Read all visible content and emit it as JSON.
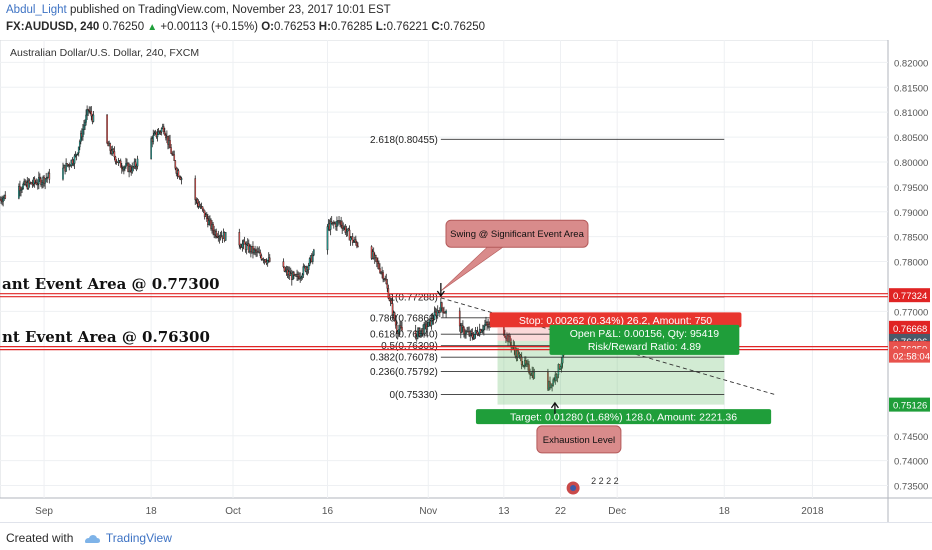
{
  "header": {
    "author": "Abdul_Light",
    "published": " published on TradingView.com, November 23, 2017 10:01 EST",
    "symbol": "FX:AUDUSD, 240",
    "last": "0.76250",
    "change": "+0.00113 (+0.15%)",
    "o_label": "O:",
    "o": "0.76253",
    "h_label": "H:",
    "h": "0.76285",
    "l_label": "L:",
    "l": "0.76221",
    "c_label": "C:",
    "c": "0.76250"
  },
  "footer": {
    "created_with": "Created with",
    "brand": "TradingView"
  },
  "colors": {
    "up": "#26a69a",
    "down": "#ef5350",
    "wick": "#222222",
    "red_line": "#e02424",
    "stop_zone": "rgba(239,83,80,0.22)",
    "target_zone": "rgba(76,175,80,0.25)"
  },
  "chart_data": {
    "type": "candlestick",
    "title": "Australian Dollar/U.S. Dollar, 240, FXCM",
    "y_range": [
      0.7325,
      0.8245
    ],
    "x_range": [
      "2017-08-25",
      "2018-01-13"
    ],
    "x_ticks": [
      {
        "label": "Sep",
        "date": "2017-09-01"
      },
      {
        "label": "18",
        "date": "2017-09-18"
      },
      {
        "label": "Oct",
        "date": "2017-10-01"
      },
      {
        "label": "16",
        "date": "2017-10-16"
      },
      {
        "label": "Nov",
        "date": "2017-11-01"
      },
      {
        "label": "13",
        "date": "2017-11-13"
      },
      {
        "label": "22",
        "date": "2017-11-22"
      },
      {
        "label": "Dec",
        "date": "2017-12-01"
      },
      {
        "label": "18",
        "date": "2017-12-18"
      },
      {
        "label": "2018",
        "date": "2018-01-01"
      }
    ],
    "y_ticks": [
      "0.82000",
      "0.81500",
      "0.81000",
      "0.80500",
      "0.80000",
      "0.79500",
      "0.79000",
      "0.78500",
      "0.78000",
      "0.77000",
      "0.74500",
      "0.74000",
      "0.73500"
    ],
    "price_anchors": [
      [
        "2017-08-25",
        0.7925
      ],
      [
        "2017-08-28",
        0.795
      ],
      [
        "2017-08-31",
        0.796
      ],
      [
        "2017-09-04",
        0.7985
      ],
      [
        "2017-09-06",
        0.801
      ],
      [
        "2017-09-08",
        0.8105
      ],
      [
        "2017-09-11",
        0.8035
      ],
      [
        "2017-09-13",
        0.7995
      ],
      [
        "2017-09-15",
        0.7985
      ],
      [
        "2017-09-18",
        0.8045
      ],
      [
        "2017-09-20",
        0.807
      ],
      [
        "2017-09-22",
        0.7985
      ],
      [
        "2017-09-26",
        0.7905
      ],
      [
        "2017-09-28",
        0.786
      ],
      [
        "2017-10-02",
        0.7838
      ],
      [
        "2017-10-05",
        0.7815
      ],
      [
        "2017-10-09",
        0.7782
      ],
      [
        "2017-10-11",
        0.7765
      ],
      [
        "2017-10-13",
        0.7795
      ],
      [
        "2017-10-16",
        0.787
      ],
      [
        "2017-10-18",
        0.788
      ],
      [
        "2017-10-20",
        0.7842
      ],
      [
        "2017-10-23",
        0.7815
      ],
      [
        "2017-10-25",
        0.777
      ],
      [
        "2017-10-27",
        0.7665
      ],
      [
        "2017-10-30",
        0.7652
      ],
      [
        "2017-11-01",
        0.7672
      ],
      [
        "2017-11-03",
        0.771
      ],
      [
        "2017-11-06",
        0.7665
      ],
      [
        "2017-11-08",
        0.765
      ],
      [
        "2017-11-10",
        0.7672
      ],
      [
        "2017-11-13",
        0.766
      ],
      [
        "2017-11-15",
        0.7615
      ],
      [
        "2017-11-17",
        0.7582
      ],
      [
        "2017-11-20",
        0.7548
      ],
      [
        "2017-11-21",
        0.7565
      ],
      [
        "2017-11-22",
        0.7595
      ],
      [
        "2017-11-23",
        0.7625
      ]
    ],
    "fibonacci": [
      {
        "label": "2.618(0.80455)",
        "price": 0.80455
      },
      {
        "label": "1(0.77288)",
        "price": 0.77288
      },
      {
        "label": "0.786(0.76869)",
        "price": 0.76869
      },
      {
        "label": "0.618(0.76540)",
        "price": 0.7654
      },
      {
        "label": "0.5(0.76309)",
        "price": 0.76309
      },
      {
        "label": "0.382(0.76078)",
        "price": 0.76078
      },
      {
        "label": "0.236(0.75792)",
        "price": 0.75792
      },
      {
        "label": "0(0.75330)",
        "price": 0.7533
      }
    ],
    "fib_start": "2017-11-03",
    "fib_end": "2017-12-18",
    "horizontal_lines": [
      {
        "label": "ant Event Area @ 0.77300",
        "price": 0.77324
      },
      {
        "label": "nt Event Area @ 0.76300",
        "price": 0.7626
      }
    ],
    "trendline": {
      "from": [
        "2017-11-03",
        0.7727
      ],
      "to": [
        "2017-12-26",
        0.7533
      ]
    },
    "position": {
      "stop_label": "Stop: 0.00262 (0.34%) 26.2, Amount: 750",
      "pnl_label": "Open P&L: 0.00156, Qty: 95419",
      "rr_label": "Risk/Reward Ratio: 4.89",
      "target_label": "Target: 0.01280 (1.68%) 128.0, Amount: 2221.36",
      "entry": 0.76406,
      "stop": 0.76668,
      "target": 0.75126,
      "start": "2017-11-12",
      "end": "2017-12-18"
    },
    "callouts": [
      {
        "text": "Swing @ Significant Event Area"
      },
      {
        "text": "Exhaustion Level"
      }
    ],
    "price_tags": [
      {
        "text": "0.77324",
        "price": 0.77324,
        "color": "#e02424"
      },
      {
        "text": "0.76668",
        "price": 0.76668,
        "color": "#e02424"
      },
      {
        "text": "0.76406",
        "price": 0.76406,
        "color": "#4a5a6a"
      },
      {
        "text": "0.76260",
        "price": 0.7626,
        "color": "#e02424"
      },
      {
        "text": "0.76250",
        "price": 0.7625,
        "color": "#e8524d"
      },
      {
        "text": "02:58:04",
        "price": 0.7611,
        "color": "#e8524d"
      },
      {
        "text": "0.75126",
        "price": 0.75126,
        "color": "#1f9e3a"
      }
    ],
    "event_marker": {
      "text": "2 2 2 2"
    },
    "grid": true
  }
}
